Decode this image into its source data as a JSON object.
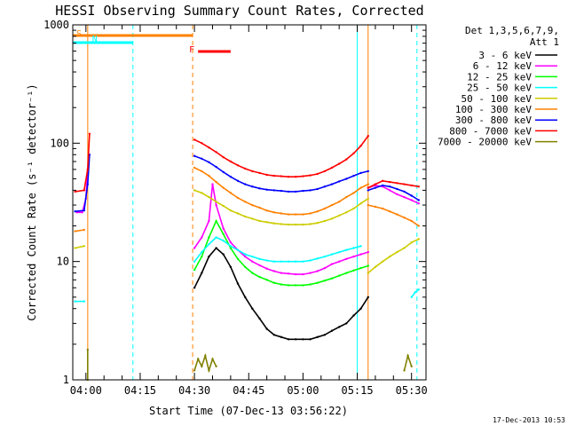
{
  "chart_data": {
    "type": "line",
    "title": "HESSI Observing Summary Count Rates, Corrected",
    "ylabel": "Corrected Count Rate (s⁻¹ detector⁻¹)",
    "xlabel": "Start Time (07-Dec-13 03:56:22)",
    "timestamp": "17-Dec-2013 10:53",
    "y_scale": "log",
    "ylim": [
      1,
      1000
    ],
    "xlim": [
      "03:56:22",
      "05:34:00"
    ],
    "y_ticks": [
      1,
      10,
      100,
      1000
    ],
    "y_tick_labels": [
      "1",
      "10",
      "100",
      "1000"
    ],
    "x_ticks": [
      "04:00",
      "04:15",
      "04:30",
      "04:45",
      "05:00",
      "05:15",
      "05:30"
    ],
    "legend": {
      "position": "right",
      "header": [
        "Det 1,3,5,6,7,9,",
        "Att 1"
      ]
    },
    "series": [
      {
        "name": "3 - 6 keV",
        "color": "#000000",
        "segments": [
          {
            "t": [
              "04:30",
              "04:32",
              "04:34",
              "04:36",
              "04:38",
              "04:40",
              "04:42",
              "04:44",
              "04:46",
              "04:48",
              "04:50",
              "04:52",
              "04:54",
              "04:56",
              "04:58",
              "05:00",
              "05:02",
              "05:04",
              "05:06",
              "05:08",
              "05:10",
              "05:12",
              "05:14",
              "05:16",
              "05:18"
            ],
            "v": [
              6.0,
              8.0,
              11.0,
              13.0,
              11.5,
              9.0,
              6.5,
              5.0,
              4.0,
              3.3,
              2.7,
              2.4,
              2.3,
              2.2,
              2.2,
              2.2,
              2.2,
              2.3,
              2.4,
              2.6,
              2.8,
              3.0,
              3.5,
              4.0,
              5.0
            ]
          }
        ]
      },
      {
        "name": "6 - 12 keV",
        "color": "#ff00ff",
        "segments": [
          {
            "t": [
              "03:57:30",
              "03:59:00",
              "04:00:00",
              "04:00:30"
            ],
            "v": [
              26,
              26,
              34,
              60
            ]
          },
          {
            "t": [
              "04:30",
              "04:32",
              "04:34",
              "04:35",
              "04:36",
              "04:38",
              "04:40",
              "04:42",
              "04:44",
              "04:46",
              "04:48",
              "04:50",
              "04:52",
              "04:54",
              "04:56",
              "04:58",
              "05:00",
              "05:02",
              "05:04",
              "05:06",
              "05:08",
              "05:10",
              "05:12",
              "05:14",
              "05:16",
              "05:18"
            ],
            "v": [
              13,
              16,
              22,
              45,
              30,
              19,
              14.5,
              12.5,
              11,
              10,
              9.3,
              8.7,
              8.3,
              8.0,
              7.9,
              7.8,
              7.8,
              8.0,
              8.3,
              8.8,
              9.5,
              10,
              10.5,
              11,
              11.5,
              12
            ]
          },
          {
            "t": [
              "05:18",
              "05:20",
              "05:22",
              "05:24",
              "05:26",
              "05:28",
              "05:30",
              "05:32"
            ],
            "v": [
              42,
              44,
              43,
              40,
              37,
              35,
              33,
              31
            ]
          }
        ]
      },
      {
        "name": "12 - 25 keV",
        "color": "#00ff00",
        "segments": [
          {
            "t": [
              "04:30",
              "04:32",
              "04:34",
              "04:36",
              "04:38",
              "04:40",
              "04:42",
              "04:44",
              "04:46",
              "04:48",
              "04:50",
              "04:52",
              "04:54",
              "04:56",
              "04:58",
              "05:00",
              "05:02",
              "05:04",
              "05:06",
              "05:08",
              "05:10",
              "05:12",
              "05:14",
              "05:16",
              "05:18"
            ],
            "v": [
              8.5,
              11,
              16,
              22,
              17,
              13,
              10.5,
              9.0,
              8.0,
              7.4,
              7.0,
              6.6,
              6.4,
              6.3,
              6.3,
              6.3,
              6.4,
              6.6,
              6.9,
              7.2,
              7.6,
              8.0,
              8.4,
              8.8,
              9.2
            ]
          }
        ]
      },
      {
        "name": "25 - 50 keV",
        "color": "#00ffff",
        "segments": [
          {
            "t": [
              "03:57:00",
              "03:59:30"
            ],
            "v": [
              4.6,
              4.6
            ]
          },
          {
            "t": [
              "04:30",
              "04:32",
              "04:34",
              "04:36",
              "04:38",
              "04:40",
              "04:42",
              "04:44",
              "04:46",
              "04:48",
              "04:50",
              "04:52",
              "04:54",
              "04:56",
              "04:58",
              "05:00",
              "05:02",
              "05:04",
              "05:06",
              "05:08",
              "05:10",
              "05:12",
              "05:14",
              "05:16"
            ],
            "v": [
              10,
              12,
              14,
              16,
              15,
              13.5,
              12.5,
              11.5,
              11,
              10.5,
              10.2,
              10,
              10,
              10,
              10,
              10,
              10.2,
              10.6,
              11,
              11.5,
              12,
              12.5,
              13,
              13.5
            ]
          },
          {
            "t": [
              "05:30",
              "05:31",
              "05:32"
            ],
            "v": [
              5.0,
              5.5,
              5.8
            ]
          }
        ]
      },
      {
        "name": "50 - 100 keV",
        "color": "#cccc00",
        "segments": [
          {
            "t": [
              "03:57:00",
              "03:59:30"
            ],
            "v": [
              13,
              13.5
            ]
          },
          {
            "t": [
              "04:30",
              "04:32",
              "04:34",
              "04:36",
              "04:38",
              "04:40",
              "04:42",
              "04:44",
              "04:46",
              "04:48",
              "04:50",
              "04:52",
              "04:54",
              "04:56",
              "04:58",
              "05:00",
              "05:02",
              "05:04",
              "05:06",
              "05:08",
              "05:10",
              "05:12",
              "05:14",
              "05:16",
              "05:18"
            ],
            "v": [
              40,
              38,
              35,
              32,
              29.5,
              27,
              25.5,
              24,
              23,
              22,
              21.5,
              21,
              20.7,
              20.5,
              20.5,
              20.5,
              20.7,
              21.2,
              22,
              23,
              24.5,
              26,
              28,
              31,
              34
            ]
          },
          {
            "t": [
              "05:18",
              "05:20",
              "05:22",
              "05:24",
              "05:26",
              "05:28",
              "05:30",
              "05:32"
            ],
            "v": [
              8,
              9,
              10,
              11,
              12,
              13,
              14.5,
              15.5
            ]
          }
        ]
      },
      {
        "name": "100 - 300 keV",
        "color": "#ff8000",
        "segments": [
          {
            "t": [
              "03:57:00",
              "03:59:30"
            ],
            "v": [
              18,
              18.5
            ]
          },
          {
            "t": [
              "04:30",
              "04:32",
              "04:34",
              "04:36",
              "04:38",
              "04:40",
              "04:42",
              "04:44",
              "04:46",
              "04:48",
              "04:50",
              "04:52",
              "04:54",
              "04:56",
              "04:58",
              "05:00",
              "05:02",
              "05:04",
              "05:06",
              "05:08",
              "05:10",
              "05:12",
              "05:14",
              "05:16",
              "05:18"
            ],
            "v": [
              62,
              58,
              53,
              47,
              42,
              38,
              34.5,
              32,
              30,
              28.5,
              27,
              26,
              25.5,
              25,
              25,
              25,
              25.5,
              26.5,
              28,
              30,
              32,
              35,
              38,
              42,
              45
            ]
          },
          {
            "t": [
              "05:18",
              "05:20",
              "05:22",
              "05:24",
              "05:26",
              "05:28",
              "05:30",
              "05:32"
            ],
            "v": [
              30,
              29,
              28,
              26.5,
              25,
              23.5,
              22,
              20
            ]
          }
        ]
      },
      {
        "name": "300 - 800 keV",
        "color": "#0000ff",
        "segments": [
          {
            "t": [
              "03:57:00",
              "03:59:30",
              "04:00:30",
              "04:01:00"
            ],
            "v": [
              26.5,
              27,
              45,
              80
            ]
          },
          {
            "t": [
              "04:30",
              "04:32",
              "04:34",
              "04:36",
              "04:38",
              "04:40",
              "04:42",
              "04:44",
              "04:46",
              "04:48",
              "04:50",
              "04:52",
              "04:54",
              "04:56",
              "04:58",
              "05:00",
              "05:02",
              "05:04",
              "05:06",
              "05:08",
              "05:10",
              "05:12",
              "05:14",
              "05:16",
              "05:18"
            ],
            "v": [
              78,
              74,
              69,
              63,
              57,
              52,
              48,
              45,
              43,
              41.5,
              40.5,
              40,
              39.5,
              39,
              39,
              39.5,
              40,
              41,
              43,
              45,
              47.5,
              50,
              53,
              56,
              58
            ]
          },
          {
            "t": [
              "05:18",
              "05:20",
              "05:22",
              "05:24",
              "05:26",
              "05:28",
              "05:30",
              "05:32"
            ],
            "v": [
              40,
              42,
              44,
              43,
              41,
              39,
              36,
              33
            ]
          }
        ]
      },
      {
        "name": "800 - 7000 keV",
        "color": "#ff0000",
        "segments": [
          {
            "t": [
              "03:57:00",
              "03:59:30",
              "04:00:30",
              "04:01:00"
            ],
            "v": [
              39,
              40,
              60,
              120
            ]
          },
          {
            "t": [
              "04:30",
              "04:32",
              "04:34",
              "04:36",
              "04:38",
              "04:40",
              "04:42",
              "04:44",
              "04:46",
              "04:48",
              "04:50",
              "04:52",
              "04:54",
              "04:56",
              "04:58",
              "05:00",
              "05:02",
              "05:04",
              "05:06",
              "05:08",
              "05:10",
              "05:12",
              "05:14",
              "05:16",
              "05:18"
            ],
            "v": [
              107,
              100,
              92,
              84,
              76,
              70,
              65,
              61,
              58,
              56,
              54,
              53,
              52.5,
              52,
              52,
              52.5,
              53.5,
              55,
              58,
              62,
              67,
              73,
              82,
              95,
              115
            ]
          },
          {
            "t": [
              "05:18",
              "05:20",
              "05:22",
              "05:24",
              "05:26",
              "05:28",
              "05:30",
              "05:32"
            ],
            "v": [
              42,
              45,
              48,
              47,
              46,
              45,
              44,
              43
            ]
          }
        ]
      },
      {
        "name": "7000 - 20000 keV",
        "color": "#808000",
        "segments": [
          {
            "t": [
              "04:00:30",
              "04:00:30"
            ],
            "v": [
              1,
              1.8
            ]
          },
          {
            "t": [
              "04:30",
              "04:31",
              "04:32",
              "04:33",
              "04:34",
              "04:35",
              "04:36"
            ],
            "v": [
              1.2,
              1.5,
              1.3,
              1.6,
              1.2,
              1.5,
              1.3
            ]
          },
          {
            "t": [
              "05:28",
              "05:29",
              "05:30"
            ],
            "v": [
              1.2,
              1.6,
              1.3
            ]
          }
        ]
      }
    ],
    "state_flags": [
      {
        "label": "S",
        "color": "#ff8000",
        "row": "top",
        "t_start": "03:56:22",
        "t_end": "04:29:30"
      },
      {
        "label": "N",
        "color": "#00ffff",
        "row": "second",
        "t_start": "03:56:22",
        "t_end": "04:13:00"
      },
      {
        "label": "F",
        "color": "#ff0000",
        "row": "third",
        "t_start": "04:31:00",
        "t_end": "04:40:00"
      }
    ],
    "vlines": [
      {
        "t": "04:00:30",
        "color": "#ff8000",
        "style": "solid"
      },
      {
        "t": "04:13:00",
        "color": "#00ffff",
        "style": "dashed"
      },
      {
        "t": "04:29:30",
        "color": "#ff8000",
        "style": "dashed"
      },
      {
        "t": "05:15:00",
        "color": "#00ffff",
        "style": "solid"
      },
      {
        "t": "05:18:00",
        "color": "#ff8000",
        "style": "solid"
      },
      {
        "t": "05:31:30",
        "color": "#00ffff",
        "style": "dashed"
      }
    ]
  }
}
